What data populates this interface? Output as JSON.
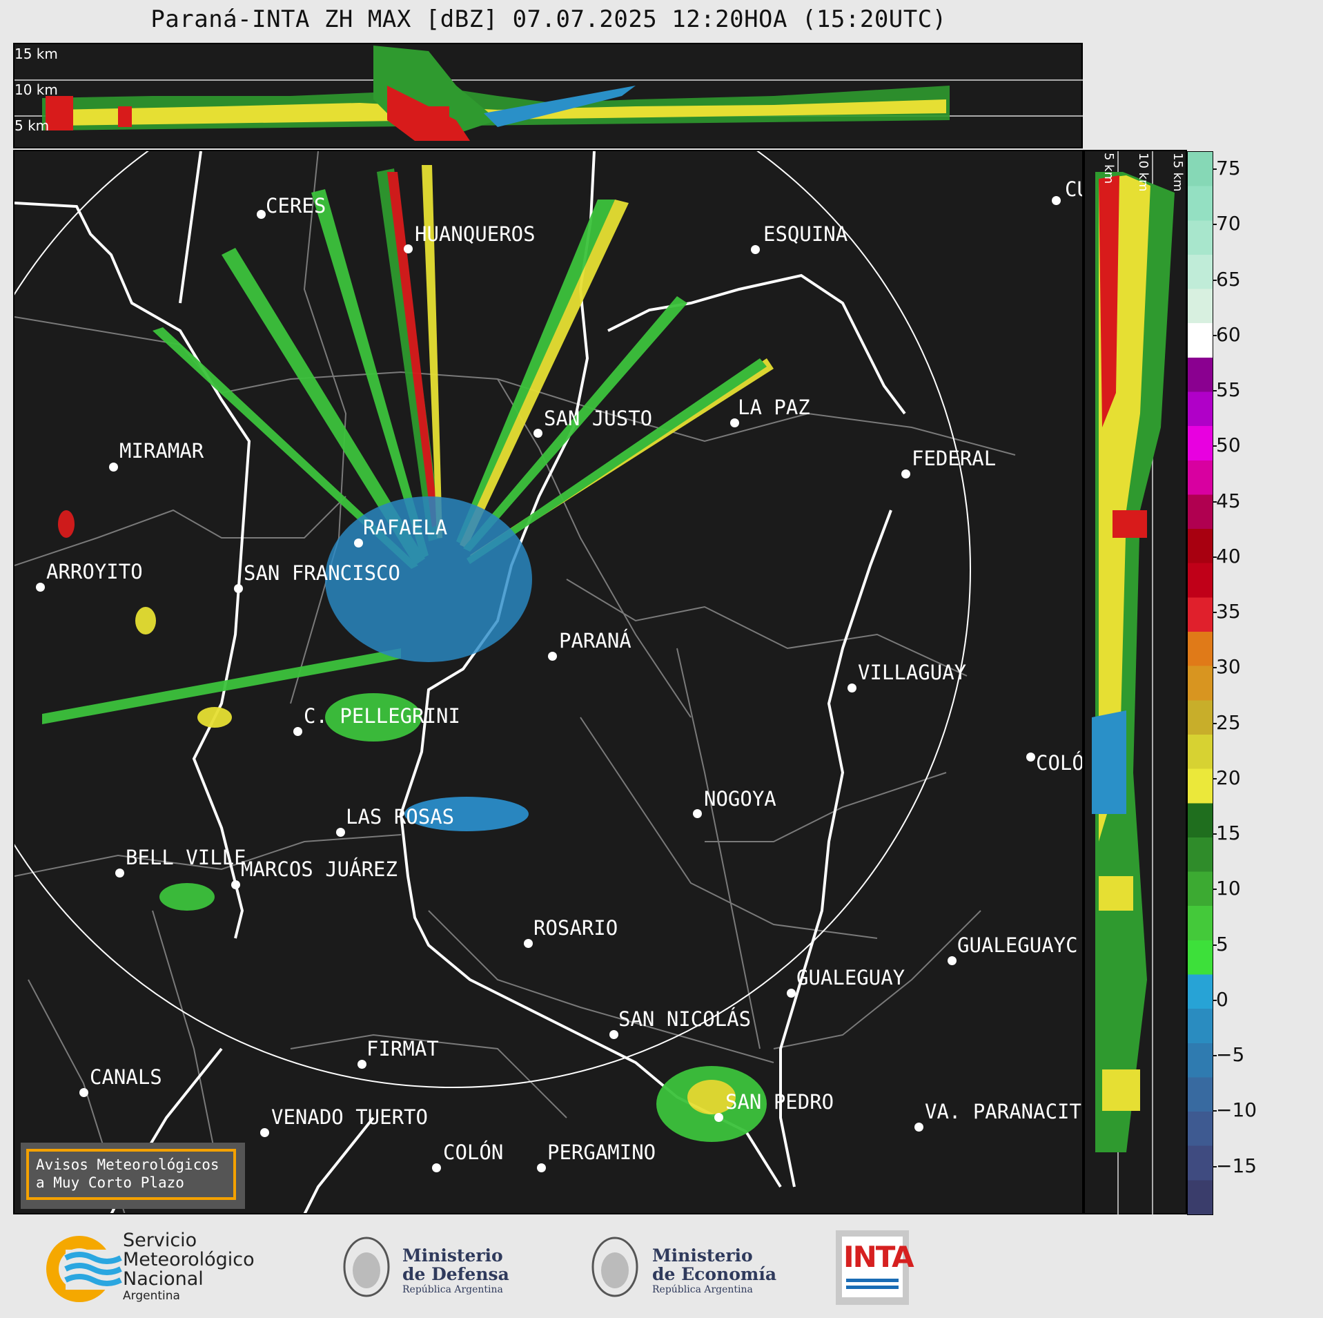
{
  "title": "Paraná-INTA ZH MAX [dBZ] 07.07.2025 12:20HOA (15:20UTC)",
  "top_panel": {
    "labels": [
      "15 km",
      "10 km",
      "5 km"
    ]
  },
  "side_panel": {
    "labels": [
      "5 km",
      "10 km",
      "15 km"
    ]
  },
  "cities": [
    {
      "name": "CERES"
    },
    {
      "name": "HUANQUEROS"
    },
    {
      "name": "ESQUINA"
    },
    {
      "name": "CU"
    },
    {
      "name": "SAN JUSTO"
    },
    {
      "name": "LA PAZ"
    },
    {
      "name": "MIRAMAR"
    },
    {
      "name": "FEDERAL"
    },
    {
      "name": "RAFAELA"
    },
    {
      "name": "ARROYITO"
    },
    {
      "name": "SAN FRANCISCO"
    },
    {
      "name": "PARANÁ"
    },
    {
      "name": "VILLAGUAY"
    },
    {
      "name": "C. PELLEGRINI"
    },
    {
      "name": "COLÓ"
    },
    {
      "name": "NOGOYA"
    },
    {
      "name": "LAS ROSAS"
    },
    {
      "name": "BELL VILLE"
    },
    {
      "name": "MARCOS JUÁREZ"
    },
    {
      "name": "ROSARIO"
    },
    {
      "name": "GUALEGUAYC"
    },
    {
      "name": "GUALEGUAY"
    },
    {
      "name": "SAN NICOLÁS"
    },
    {
      "name": "FIRMAT"
    },
    {
      "name": "CANALS"
    },
    {
      "name": "SAN PEDRO"
    },
    {
      "name": "VENADO TUERTO"
    },
    {
      "name": "VA. PARANACIT"
    },
    {
      "name": "COLÓN"
    },
    {
      "name": "PERGAMINO"
    }
  ],
  "colorbar": {
    "ticks": [
      "75",
      "70",
      "65",
      "60",
      "55",
      "50",
      "45",
      "40",
      "35",
      "30",
      "25",
      "20",
      "15",
      "10",
      "5",
      "0",
      "−5",
      "−10",
      "−15"
    ],
    "colors": [
      "#3a3d6b",
      "#3f4b80",
      "#3e5a91",
      "#386aa0",
      "#2f7bb0",
      "#2a8cc0",
      "#27a3d6",
      "#3de03a",
      "#44c93a",
      "#3caa32",
      "#2f8c2a",
      "#1f6e1e",
      "#ebe83a",
      "#d7d232",
      "#c8ae2a",
      "#d89520",
      "#e07a18",
      "#e0202c",
      "#c00018",
      "#a80010",
      "#b00050",
      "#d800a0",
      "#e800e0",
      "#b000c8",
      "#8a0090",
      "#ffffff",
      "#d8f0e0",
      "#c0ecd8",
      "#a8e6cc",
      "#94e0c2",
      "#86d8b6"
    ]
  },
  "avisos": {
    "line1": "Avisos Meteorológicos",
    "line2": "a Muy Corto Plazo"
  },
  "logos": {
    "smn": {
      "line1": "Servicio",
      "line2": "Meteorológico",
      "line3": "Nacional",
      "line4": "Argentina"
    },
    "defensa": {
      "line1": "Ministerio",
      "line2": "de Defensa",
      "line3": "República Argentina"
    },
    "economia": {
      "line1": "Ministerio",
      "line2": "de Economía",
      "line3": "República Argentina"
    },
    "inta": {
      "text": "INTA"
    }
  }
}
